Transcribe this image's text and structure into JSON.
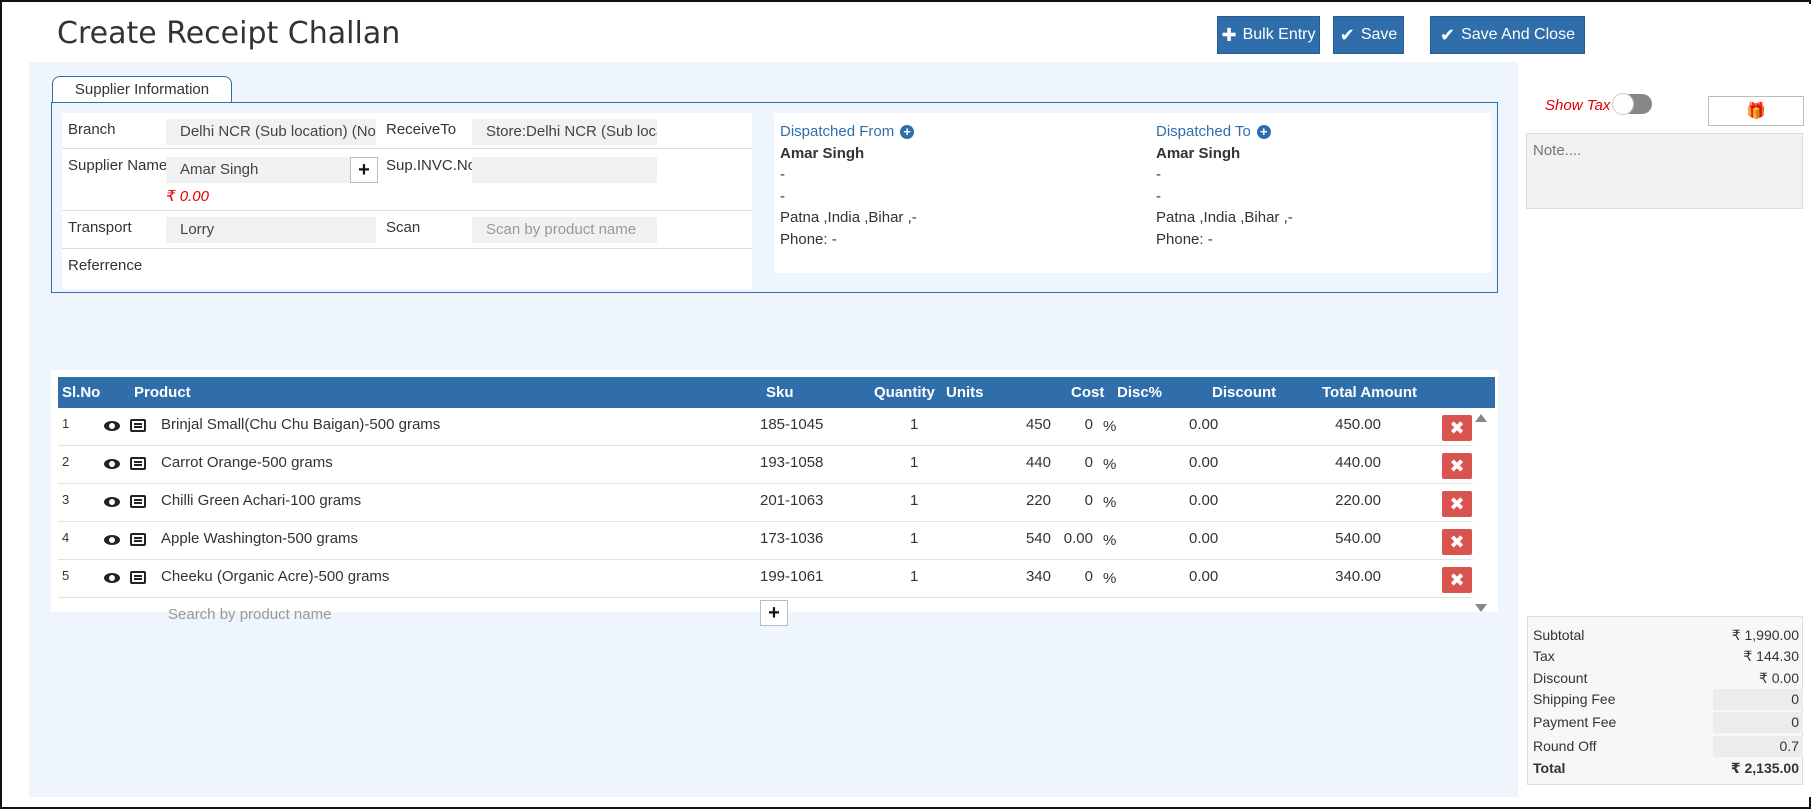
{
  "header": {
    "title": "Create Receipt Challan",
    "bulk_entry_label": "Bulk Entry",
    "save_label": "Save",
    "save_close_label": "Save And Close"
  },
  "supplier": {
    "tab_label": "Supplier Information",
    "branch_label": "Branch",
    "branch_value": "Delhi NCR (Sub location) (Not Di",
    "receive_to_label": "ReceiveTo",
    "receive_to_value": "Store:Delhi NCR (Sub locatio",
    "supplier_name_label": "Supplier Name",
    "supplier_name_value": "Amar Singh",
    "balance": "₹ 0.00",
    "invoice_label": "Sup.INVC.No",
    "invoice_value": "",
    "transport_label": "Transport",
    "transport_value": "Lorry",
    "scan_label": "Scan",
    "scan_placeholder": "Scan by product name",
    "reference_label": "Referrence"
  },
  "dispatch_from": {
    "title": "Dispatched From",
    "name": "Amar Singh",
    "line1": "-",
    "line2": "-",
    "address": "Patna ,India ,Bihar ,-",
    "phone": "Phone: -"
  },
  "dispatch_to": {
    "title": "Dispatched To",
    "name": "Amar Singh",
    "line1": "-",
    "line2": "-",
    "address": "Patna ,India ,Bihar ,-",
    "phone": "Phone: -"
  },
  "table": {
    "headers": {
      "slno": "Sl.No",
      "product": "Product",
      "sku": "Sku",
      "quantity": "Quantity",
      "units": "Units",
      "cost": "Cost",
      "disc_pct": "Disc%",
      "discount": "Discount",
      "total": "Total Amount"
    },
    "rows": [
      {
        "no": "1",
        "product": "Brinjal Small(Chu Chu Baigan)-500 grams",
        "sku": "185-1045",
        "qty": "1",
        "cost": "450",
        "disc": "0",
        "pct": "%",
        "discount": "0.00",
        "total": "450.00"
      },
      {
        "no": "2",
        "product": "Carrot Orange-500 grams",
        "sku": "193-1058",
        "qty": "1",
        "cost": "440",
        "disc": "0",
        "pct": "%",
        "discount": "0.00",
        "total": "440.00"
      },
      {
        "no": "3",
        "product": "Chilli Green Achari-100 grams",
        "sku": "201-1063",
        "qty": "1",
        "cost": "220",
        "disc": "0",
        "pct": "%",
        "discount": "0.00",
        "total": "220.00"
      },
      {
        "no": "4",
        "product": "Apple Washington-500 grams",
        "sku": "173-1036",
        "qty": "1",
        "cost": "540",
        "disc": "0.00",
        "pct": "%",
        "discount": "0.00",
        "total": "540.00"
      },
      {
        "no": "5",
        "product": "Cheeku (Organic Acre)-500 grams",
        "sku": "199-1061",
        "qty": "1",
        "cost": "340",
        "disc": "0",
        "pct": "%",
        "discount": "0.00",
        "total": "340.00"
      }
    ],
    "search_placeholder": "Search by product name"
  },
  "sidebar": {
    "show_tax_label": "Show Tax",
    "note_placeholder": "Note...."
  },
  "totals": {
    "subtotal_label": "Subtotal",
    "subtotal": "₹ 1,990.00",
    "tax_label": "Tax",
    "tax": "₹ 144.30",
    "discount_label": "Discount",
    "discount": "₹ 0.00",
    "shipping_label": "Shipping Fee",
    "shipping": "0",
    "payment_label": "Payment Fee",
    "payment": "0",
    "roundoff_label": "Round Off",
    "roundoff": "0.7",
    "total_label": "Total",
    "total": "₹ 2,135.00"
  },
  "colors": {
    "primary": "#2f6eaa",
    "danger": "#d9534f",
    "balance_red": "#e00000",
    "page_bg": "#eef5fc"
  }
}
